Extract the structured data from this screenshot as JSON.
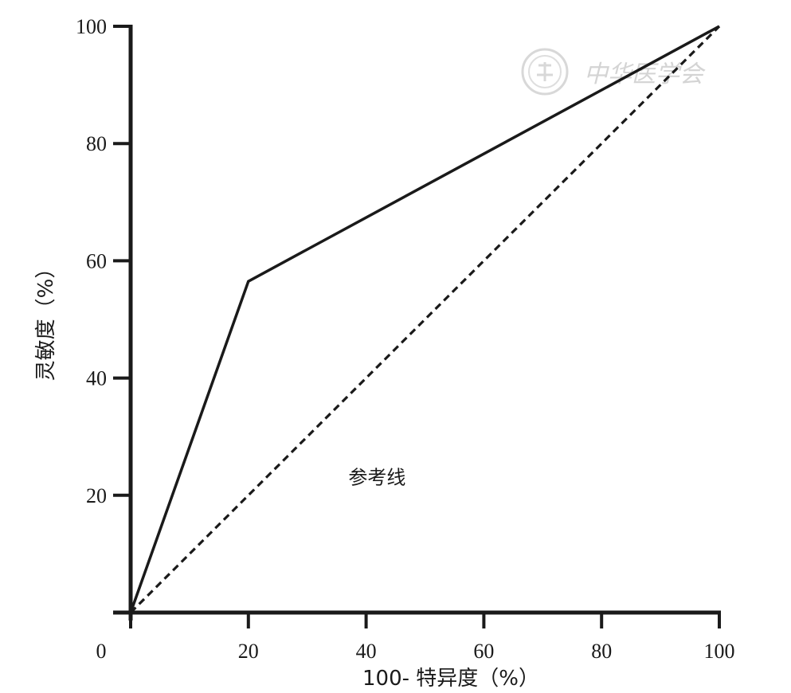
{
  "chart_data": {
    "type": "line",
    "xlabel": "100- 特异度（%）",
    "ylabel": "灵敏度（%）",
    "xlim": [
      0,
      100
    ],
    "ylim": [
      0,
      100
    ],
    "x_ticks": [
      "0",
      "20",
      "40",
      "60",
      "80",
      "100"
    ],
    "y_ticks": [
      "20",
      "40",
      "60",
      "80",
      "100"
    ],
    "grid": false,
    "series": [
      {
        "style": "solid",
        "color": "#1a1a1a",
        "x": [
          0,
          20,
          100
        ],
        "y": [
          0,
          56.5,
          100
        ]
      },
      {
        "name": "参考线",
        "style": "dashed",
        "color": "#1a1a1a",
        "x": [
          0,
          100
        ],
        "y": [
          0,
          100
        ]
      }
    ],
    "annotations": [
      {
        "text": "参考线",
        "x": 37,
        "y": 23
      }
    ]
  },
  "watermark": {
    "text": "中华医学会"
  }
}
